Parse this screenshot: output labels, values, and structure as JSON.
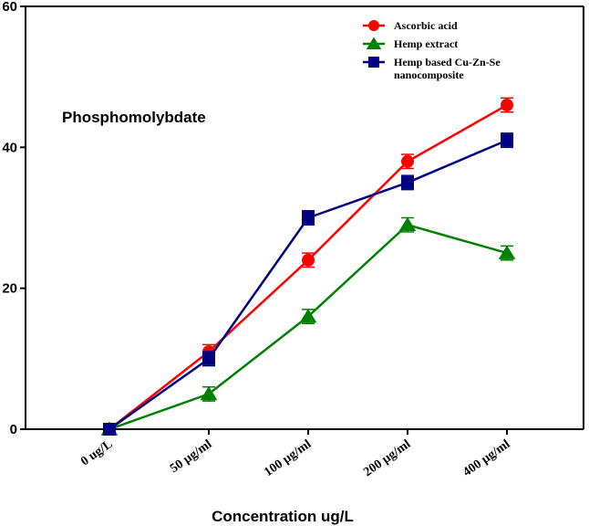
{
  "chart_data": {
    "type": "line",
    "title": "",
    "annotation": "Phosphomolybdate",
    "xlabel": "Concentration ug/L",
    "ylabel": "",
    "categories": [
      "0 ug/L",
      "50 µg/ml",
      "100 µg/ml",
      "200 µg/ml",
      "400 µg/ml"
    ],
    "ylim": [
      0,
      60
    ],
    "yticks": [
      0,
      20,
      40,
      60
    ],
    "grid": false,
    "legend_position": "top-right",
    "series": [
      {
        "name": "Ascorbic acid",
        "marker": "circle",
        "color": "#ff0000",
        "values": [
          0,
          11,
          24,
          38,
          46
        ],
        "errors": [
          0.5,
          1,
          1,
          1,
          1
        ]
      },
      {
        "name": "Hemp extract",
        "marker": "triangle",
        "color": "#008000",
        "values": [
          0,
          5,
          16,
          29,
          25
        ],
        "errors": [
          0.5,
          1,
          1,
          1,
          1
        ]
      },
      {
        "name": "Hemp based Cu-Zn-Se nanocomposite",
        "legend_lines": [
          "Hemp based Cu-Zn-Se",
          "nanocomposite"
        ],
        "marker": "square",
        "color": "#000080",
        "values": [
          0,
          10,
          30,
          35,
          41
        ],
        "errors": [
          0.5,
          1,
          1,
          1,
          1
        ]
      }
    ]
  }
}
